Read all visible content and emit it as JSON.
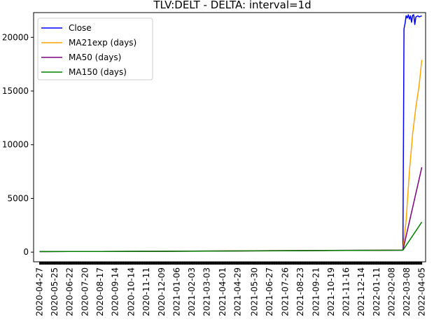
{
  "chart_data": {
    "type": "line",
    "title": "TLV:DELT - DELTA: interval=1d",
    "xlabel": "",
    "ylabel": "",
    "x_ticks": [
      "2020-04-27",
      "2020-05-25",
      "2020-06-22",
      "2020-07-20",
      "2020-08-17",
      "2020-09-14",
      "2020-10-14",
      "2020-11-11",
      "2020-12-09",
      "2021-01-06",
      "2021-02-03",
      "2021-03-03",
      "2021-04-01",
      "2021-04-29",
      "2021-05-30",
      "2021-06-27",
      "2021-07-26",
      "2021-08-23",
      "2021-09-21",
      "2021-10-19",
      "2021-11-16",
      "2021-12-14",
      "2022-01-11",
      "2022-02-08",
      "2022-03-08",
      "2022-04-05"
    ],
    "y_ticks": [
      "0",
      "5000",
      "10000",
      "15000",
      "20000"
    ],
    "ylim": [
      -900,
      22300
    ],
    "xlim": [
      "2020-04-16",
      "2022-04-12"
    ],
    "grid": false,
    "legend_position": "upper-left",
    "series": [
      {
        "name": "Close",
        "color": "#0000ff",
        "points": [
          [
            "2020-04-27",
            55
          ],
          [
            "2020-06-22",
            60
          ],
          [
            "2020-08-17",
            65
          ],
          [
            "2020-10-14",
            72
          ],
          [
            "2020-12-09",
            80
          ],
          [
            "2021-02-03",
            95
          ],
          [
            "2021-04-01",
            110
          ],
          [
            "2021-05-30",
            125
          ],
          [
            "2021-07-26",
            140
          ],
          [
            "2021-09-21",
            150
          ],
          [
            "2021-11-16",
            165
          ],
          [
            "2022-01-11",
            175
          ],
          [
            "2022-02-20",
            185
          ],
          [
            "2022-03-01",
            190
          ],
          [
            "2022-03-03",
            20800
          ],
          [
            "2022-03-05",
            21300
          ],
          [
            "2022-03-07",
            22000
          ],
          [
            "2022-03-09",
            21800
          ],
          [
            "2022-03-11",
            22100
          ],
          [
            "2022-03-13",
            21700
          ],
          [
            "2022-03-15",
            22000
          ],
          [
            "2022-03-17",
            21400
          ],
          [
            "2022-03-19",
            22050
          ],
          [
            "2022-03-21",
            22100
          ],
          [
            "2022-03-23",
            21200
          ],
          [
            "2022-03-25",
            21900
          ],
          [
            "2022-03-27",
            21950
          ],
          [
            "2022-03-29",
            22000
          ],
          [
            "2022-03-31",
            21900
          ],
          [
            "2022-04-05",
            22000
          ]
        ]
      },
      {
        "name": "MA21exp (days)",
        "color": "#ffa500",
        "points": [
          [
            "2020-04-27",
            55
          ],
          [
            "2020-06-22",
            60
          ],
          [
            "2020-08-17",
            65
          ],
          [
            "2020-10-14",
            72
          ],
          [
            "2020-12-09",
            80
          ],
          [
            "2021-02-03",
            95
          ],
          [
            "2021-04-01",
            110
          ],
          [
            "2021-05-30",
            125
          ],
          [
            "2021-07-26",
            140
          ],
          [
            "2021-09-21",
            150
          ],
          [
            "2021-11-16",
            165
          ],
          [
            "2022-01-11",
            175
          ],
          [
            "2022-03-01",
            190
          ],
          [
            "2022-03-07",
            3000
          ],
          [
            "2022-03-13",
            7500
          ],
          [
            "2022-03-19",
            11000
          ],
          [
            "2022-03-25",
            13500
          ],
          [
            "2022-03-31",
            15500
          ],
          [
            "2022-04-05",
            17900
          ]
        ]
      },
      {
        "name": "MA50 (days)",
        "color": "#800080",
        "points": [
          [
            "2020-04-27",
            55
          ],
          [
            "2020-06-22",
            58
          ],
          [
            "2020-08-17",
            63
          ],
          [
            "2020-10-14",
            70
          ],
          [
            "2020-12-09",
            78
          ],
          [
            "2021-02-03",
            92
          ],
          [
            "2021-04-01",
            105
          ],
          [
            "2021-05-30",
            120
          ],
          [
            "2021-07-26",
            135
          ],
          [
            "2021-09-21",
            147
          ],
          [
            "2021-11-16",
            160
          ],
          [
            "2022-01-11",
            170
          ],
          [
            "2022-03-01",
            185
          ],
          [
            "2022-04-05",
            7900
          ]
        ]
      },
      {
        "name": "MA150 (days)",
        "color": "#008000",
        "points": [
          [
            "2020-04-27",
            55
          ],
          [
            "2020-06-22",
            58
          ],
          [
            "2020-08-17",
            62
          ],
          [
            "2020-10-14",
            68
          ],
          [
            "2020-12-09",
            75
          ],
          [
            "2021-02-03",
            88
          ],
          [
            "2021-04-01",
            100
          ],
          [
            "2021-05-30",
            115
          ],
          [
            "2021-07-26",
            130
          ],
          [
            "2021-09-21",
            142
          ],
          [
            "2021-11-16",
            155
          ],
          [
            "2022-01-11",
            165
          ],
          [
            "2022-03-01",
            180
          ],
          [
            "2022-04-05",
            2800
          ]
        ]
      }
    ]
  }
}
